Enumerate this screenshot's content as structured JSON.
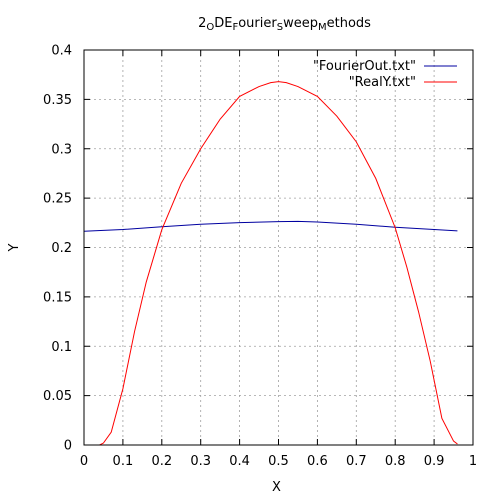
{
  "chart_data": {
    "type": "line",
    "title_parts": [
      {
        "text": "2",
        "sub": false
      },
      {
        "text": "O",
        "sub": true
      },
      {
        "text": "DE",
        "sub": false
      },
      {
        "text": "F",
        "sub": true
      },
      {
        "text": "ourier",
        "sub": false
      },
      {
        "text": "S",
        "sub": true
      },
      {
        "text": "weep",
        "sub": false
      },
      {
        "text": "M",
        "sub": true
      },
      {
        "text": "ethods",
        "sub": false
      }
    ],
    "xlabel": "X",
    "ylabel": "Y",
    "xlim": [
      0,
      1
    ],
    "ylim": [
      0,
      0.4
    ],
    "xticks": [
      "0",
      "0.1",
      "0.2",
      "0.3",
      "0.4",
      "0.5",
      "0.6",
      "0.7",
      "0.8",
      "0.9",
      "1"
    ],
    "yticks": [
      "0",
      "0.05",
      "0.1",
      "0.15",
      "0.2",
      "0.25",
      "0.3",
      "0.35",
      "0.4"
    ],
    "grid": true,
    "legend_position": "top-right",
    "series": [
      {
        "name": "\"FourierOut.txt\"",
        "color": "#0000a0",
        "x": [
          0.0,
          0.1,
          0.2,
          0.3,
          0.4,
          0.5,
          0.55,
          0.6,
          0.7,
          0.8,
          0.9,
          0.96
        ],
        "y": [
          0.2165,
          0.2182,
          0.221,
          0.2235,
          0.2252,
          0.2262,
          0.2264,
          0.2258,
          0.2235,
          0.2205,
          0.2182,
          0.2168
        ]
      },
      {
        "name": "\"RealY.txt\"",
        "color": "#ff0000",
        "x": [
          0.03,
          0.04,
          0.05,
          0.07,
          0.1,
          0.13,
          0.16,
          0.2,
          0.25,
          0.3,
          0.35,
          0.4,
          0.45,
          0.48,
          0.5,
          0.52,
          0.55,
          0.6,
          0.65,
          0.7,
          0.75,
          0.8,
          0.83,
          0.86,
          0.89,
          0.92,
          0.95,
          0.96
        ],
        "y": [
          0.0,
          0.0,
          0.002,
          0.013,
          0.057,
          0.115,
          0.165,
          0.218,
          0.265,
          0.3,
          0.33,
          0.353,
          0.363,
          0.367,
          0.368,
          0.367,
          0.363,
          0.353,
          0.333,
          0.307,
          0.27,
          0.22,
          0.18,
          0.135,
          0.085,
          0.027,
          0.004,
          0.001
        ]
      }
    ]
  }
}
